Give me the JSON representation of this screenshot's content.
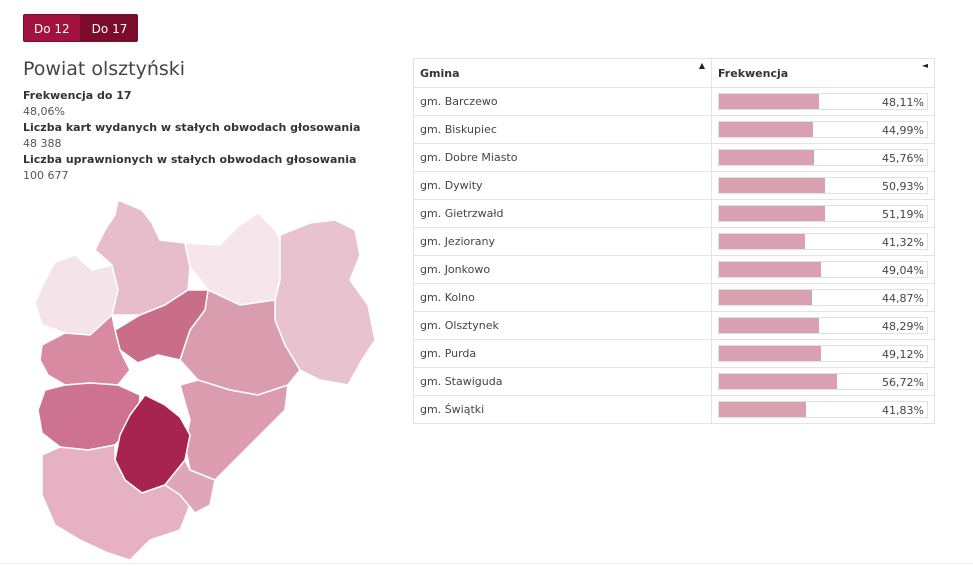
{
  "tabs": [
    {
      "label": "Do 12",
      "active": false
    },
    {
      "label": "Do 17",
      "active": true
    }
  ],
  "title": "Powiat olsztyński",
  "stats": [
    {
      "label": "Frekwencja do 17",
      "value": "48,06%"
    },
    {
      "label": "Liczba kart wydanych w stałych obwodach głosowania",
      "value": "48 388"
    },
    {
      "label": "Liczba uprawnionych w stałych obwodach głosowania",
      "value": "100 677"
    }
  ],
  "table": {
    "headers": {
      "gmina": "Gmina",
      "frekwencja": "Frekwencja"
    },
    "sort_icons": {
      "gmina": "▲",
      "frekwencja": "◄"
    },
    "rows": [
      {
        "gmina": "gm. Barczewo",
        "pct": "48,11%",
        "value": 48.11
      },
      {
        "gmina": "gm. Biskupiec",
        "pct": "44,99%",
        "value": 44.99
      },
      {
        "gmina": "gm. Dobre Miasto",
        "pct": "45,76%",
        "value": 45.76
      },
      {
        "gmina": "gm. Dywity",
        "pct": "50,93%",
        "value": 50.93
      },
      {
        "gmina": "gm. Gietrzwałd",
        "pct": "51,19%",
        "value": 51.19
      },
      {
        "gmina": "gm. Jeziorany",
        "pct": "41,32%",
        "value": 41.32
      },
      {
        "gmina": "gm. Jonkowo",
        "pct": "49,04%",
        "value": 49.04
      },
      {
        "gmina": "gm. Kolno",
        "pct": "44,87%",
        "value": 44.87
      },
      {
        "gmina": "gm. Olsztynek",
        "pct": "48,29%",
        "value": 48.29
      },
      {
        "gmina": "gm. Purda",
        "pct": "49,12%",
        "value": 49.12
      },
      {
        "gmina": "gm. Stawiguda",
        "pct": "56,72%",
        "value": 56.72
      },
      {
        "gmina": "gm. Świątki",
        "pct": "41,83%",
        "value": 41.83
      }
    ]
  },
  "colors": {
    "accent": "#a3123e",
    "accent_dark": "#7b0c2c",
    "bar": "#d8a0b0"
  }
}
